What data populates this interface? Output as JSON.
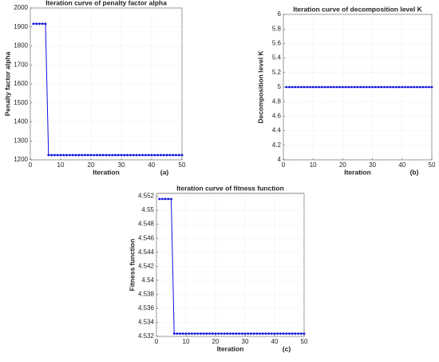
{
  "chart_data": [
    {
      "type": "line",
      "title": "Iteration curve of penalty factor alpha",
      "x_label": "Iteration",
      "y_label": "Penalty factor alpha",
      "annotation": "(a)",
      "x": [
        1,
        2,
        3,
        4,
        5,
        6,
        7,
        8,
        9,
        10,
        11,
        12,
        13,
        14,
        15,
        16,
        17,
        18,
        19,
        20,
        21,
        22,
        23,
        24,
        25,
        26,
        27,
        28,
        29,
        30,
        31,
        32,
        33,
        34,
        35,
        36,
        37,
        38,
        39,
        40,
        41,
        42,
        43,
        44,
        45,
        46,
        47,
        48,
        49,
        50
      ],
      "series": [
        {
          "color": "#1010e0",
          "values": [
            1917,
            1917,
            1917,
            1917,
            1917,
            1225,
            1225,
            1225,
            1225,
            1225,
            1225,
            1225,
            1225,
            1225,
            1225,
            1225,
            1225,
            1225,
            1225,
            1225,
            1225,
            1225,
            1225,
            1225,
            1225,
            1225,
            1225,
            1225,
            1225,
            1225,
            1225,
            1225,
            1225,
            1225,
            1225,
            1225,
            1225,
            1225,
            1225,
            1225,
            1225,
            1225,
            1225,
            1225,
            1225,
            1225,
            1225,
            1225,
            1225,
            1225
          ]
        }
      ],
      "xlim": [
        0,
        50
      ],
      "xticks": [
        0,
        10,
        20,
        30,
        40,
        50
      ],
      "ylim": [
        1200,
        2000
      ],
      "yticks": [
        1200,
        1300,
        1400,
        1500,
        1600,
        1700,
        1800,
        1900,
        2000
      ],
      "grid": true
    },
    {
      "type": "line",
      "title": "Iteration curve of decomposition level K",
      "x_label": "Iteration",
      "y_label": "Decomposition level K",
      "annotation": "(b)",
      "x": [
        1,
        2,
        3,
        4,
        5,
        6,
        7,
        8,
        9,
        10,
        11,
        12,
        13,
        14,
        15,
        16,
        17,
        18,
        19,
        20,
        21,
        22,
        23,
        24,
        25,
        26,
        27,
        28,
        29,
        30,
        31,
        32,
        33,
        34,
        35,
        36,
        37,
        38,
        39,
        40,
        41,
        42,
        43,
        44,
        45,
        46,
        47,
        48,
        49,
        50
      ],
      "series": [
        {
          "color": "#1010e0",
          "values": [
            5,
            5,
            5,
            5,
            5,
            5,
            5,
            5,
            5,
            5,
            5,
            5,
            5,
            5,
            5,
            5,
            5,
            5,
            5,
            5,
            5,
            5,
            5,
            5,
            5,
            5,
            5,
            5,
            5,
            5,
            5,
            5,
            5,
            5,
            5,
            5,
            5,
            5,
            5,
            5,
            5,
            5,
            5,
            5,
            5,
            5,
            5,
            5,
            5,
            5
          ]
        }
      ],
      "xlim": [
        0,
        50
      ],
      "xticks": [
        0,
        10,
        20,
        30,
        40,
        50
      ],
      "ylim": [
        4,
        6
      ],
      "yticks": [
        4,
        4.2,
        4.4,
        4.6,
        4.8,
        5,
        5.2,
        5.4,
        5.6,
        5.8,
        6
      ],
      "grid": true
    },
    {
      "type": "line",
      "title": "Iteration curve of fitness function",
      "x_label": "Iteration",
      "y_label": "Fitness function",
      "annotation": "(c)",
      "x": [
        1,
        2,
        3,
        4,
        5,
        6,
        7,
        8,
        9,
        10,
        11,
        12,
        13,
        14,
        15,
        16,
        17,
        18,
        19,
        20,
        21,
        22,
        23,
        24,
        25,
        26,
        27,
        28,
        29,
        30,
        31,
        32,
        33,
        34,
        35,
        36,
        37,
        38,
        39,
        40,
        41,
        42,
        43,
        44,
        45,
        46,
        47,
        48,
        49,
        50
      ],
      "series": [
        {
          "color": "#1010e0",
          "values": [
            4.5516,
            4.5516,
            4.5516,
            4.5516,
            4.5516,
            4.5324,
            4.5324,
            4.5324,
            4.5324,
            4.5324,
            4.5324,
            4.5324,
            4.5324,
            4.5324,
            4.5324,
            4.5324,
            4.5324,
            4.5324,
            4.5324,
            4.5324,
            4.5324,
            4.5324,
            4.5324,
            4.5324,
            4.5324,
            4.5324,
            4.5324,
            4.5324,
            4.5324,
            4.5324,
            4.5324,
            4.5324,
            4.5324,
            4.5324,
            4.5324,
            4.5324,
            4.5324,
            4.5324,
            4.5324,
            4.5324,
            4.5324,
            4.5324,
            4.5324,
            4.5324,
            4.5324,
            4.5324,
            4.5324,
            4.5324,
            4.5324,
            4.5324
          ]
        }
      ],
      "xlim": [
        0,
        50
      ],
      "xticks": [
        0,
        10,
        20,
        30,
        40,
        50
      ],
      "ylim": [
        4.532,
        4.5524
      ],
      "yticks": [
        4.532,
        4.534,
        4.536,
        4.538,
        4.54,
        4.542,
        4.544,
        4.546,
        4.548,
        4.55,
        4.552
      ],
      "grid": true
    }
  ]
}
